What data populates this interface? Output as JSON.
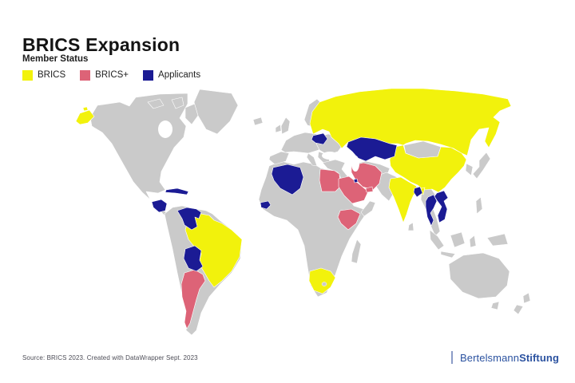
{
  "header": {
    "title": "BRICS Expansion"
  },
  "legend": {
    "title": "Member Status",
    "items": [
      {
        "id": "brics",
        "label": "BRICS",
        "color": "#f2f20c"
      },
      {
        "id": "brics_plus",
        "label": "BRICS+",
        "color": "#dd6377"
      },
      {
        "id": "applicant",
        "label": "Applicants",
        "color": "#1b1b94"
      }
    ]
  },
  "map": {
    "land_color": "#cacaca",
    "border_color": "#ffffff",
    "sea_color": "#ffffff",
    "countries": [
      {
        "name": "Russia",
        "status": "brics"
      },
      {
        "name": "China",
        "status": "brics"
      },
      {
        "name": "India",
        "status": "brics"
      },
      {
        "name": "Brazil",
        "status": "brics"
      },
      {
        "name": "South Africa",
        "status": "brics"
      },
      {
        "name": "Argentina",
        "status": "brics_plus"
      },
      {
        "name": "Egypt",
        "status": "brics_plus"
      },
      {
        "name": "Ethiopia",
        "status": "brics_plus"
      },
      {
        "name": "Iran",
        "status": "brics_plus"
      },
      {
        "name": "Saudi Arabia",
        "status": "brics_plus"
      },
      {
        "name": "United Arab Emirates",
        "status": "brics_plus"
      },
      {
        "name": "Algeria",
        "status": "applicant"
      },
      {
        "name": "Bangladesh",
        "status": "applicant"
      },
      {
        "name": "Belarus",
        "status": "applicant"
      },
      {
        "name": "Bolivia",
        "status": "applicant"
      },
      {
        "name": "Cuba",
        "status": "applicant"
      },
      {
        "name": "Honduras",
        "status": "applicant"
      },
      {
        "name": "Kazakhstan",
        "status": "applicant"
      },
      {
        "name": "Kuwait",
        "status": "applicant"
      },
      {
        "name": "Senegal",
        "status": "applicant"
      },
      {
        "name": "Thailand",
        "status": "applicant"
      },
      {
        "name": "Venezuela",
        "status": "applicant"
      },
      {
        "name": "Vietnam",
        "status": "applicant"
      }
    ]
  },
  "chart_data": {
    "type": "choropleth",
    "title": "BRICS Expansion",
    "legend_title": "Member Status",
    "groups": [
      {
        "status": "BRICS",
        "countries": [
          "Brazil",
          "Russia",
          "India",
          "China",
          "South Africa"
        ]
      },
      {
        "status": "BRICS+",
        "countries": [
          "Argentina",
          "Egypt",
          "Ethiopia",
          "Iran",
          "Saudi Arabia",
          "United Arab Emirates"
        ]
      },
      {
        "status": "Applicants",
        "countries": [
          "Algeria",
          "Bangladesh",
          "Belarus",
          "Bolivia",
          "Cuba",
          "Honduras",
          "Kazakhstan",
          "Kuwait",
          "Senegal",
          "Thailand",
          "Venezuela",
          "Vietnam"
        ]
      }
    ]
  },
  "footer": {
    "source": "Source: BRICS 2023. Created with DataWrapper Sept. 2023"
  },
  "branding": {
    "regular": "Bertelsmann",
    "bold": "Stiftung",
    "color": "#2b52a0",
    "bar_color": "#8b9cc7"
  }
}
